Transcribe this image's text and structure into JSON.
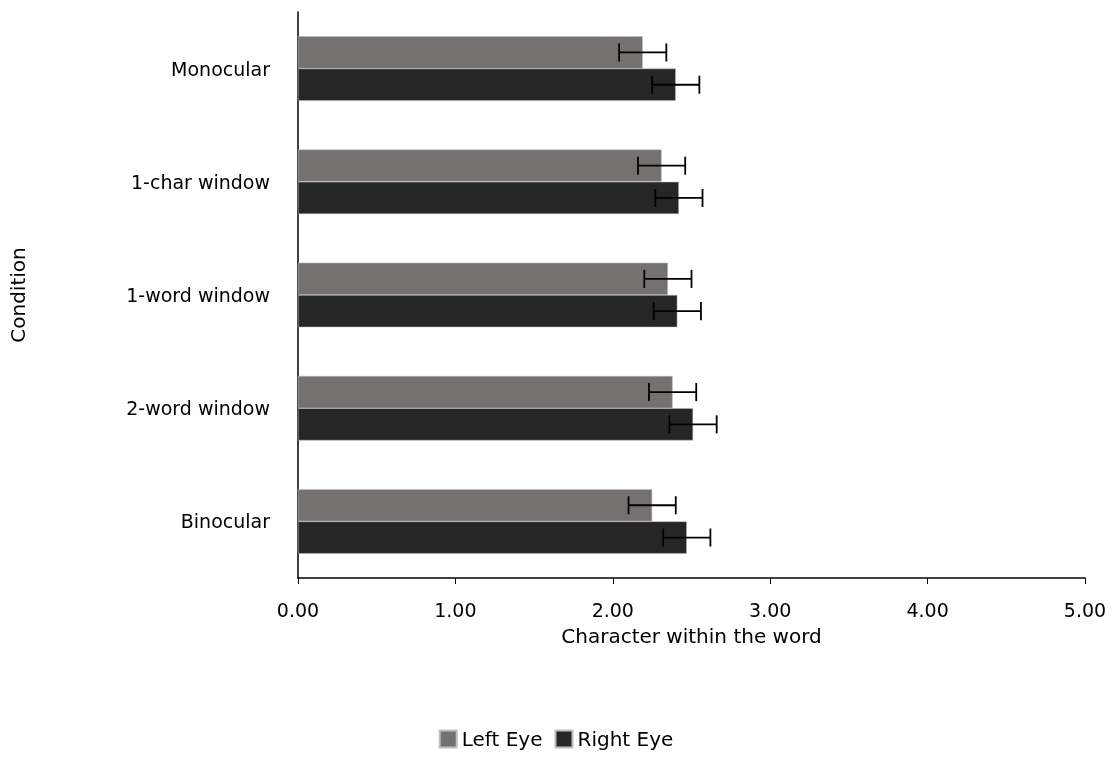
{
  "chart_data": {
    "type": "bar",
    "orientation": "horizontal",
    "xlabel": "Character within the word",
    "ylabel": "Condition",
    "categories": [
      "Monocular",
      "1-char window",
      "1-word window",
      "2-word window",
      "Binocular"
    ],
    "series": [
      {
        "name": "Left Eye",
        "color": "#767171",
        "values": [
          2.19,
          2.31,
          2.35,
          2.38,
          2.25
        ],
        "errors": [
          0.15,
          0.15,
          0.15,
          0.15,
          0.15
        ]
      },
      {
        "name": "Right Eye",
        "color": "#262626",
        "values": [
          2.4,
          2.42,
          2.41,
          2.51,
          2.47
        ],
        "errors": [
          0.15,
          0.15,
          0.15,
          0.15,
          0.15
        ]
      }
    ],
    "xlim": [
      0,
      5
    ],
    "xticks": [
      {
        "value": 0,
        "label": "0.00"
      },
      {
        "value": 1,
        "label": "1.00"
      },
      {
        "value": 2,
        "label": "2.00"
      },
      {
        "value": 3,
        "label": "3.00"
      },
      {
        "value": 4,
        "label": "4.00"
      },
      {
        "value": 5,
        "label": "5.00"
      }
    ],
    "grid": false,
    "legend": "bottom"
  }
}
